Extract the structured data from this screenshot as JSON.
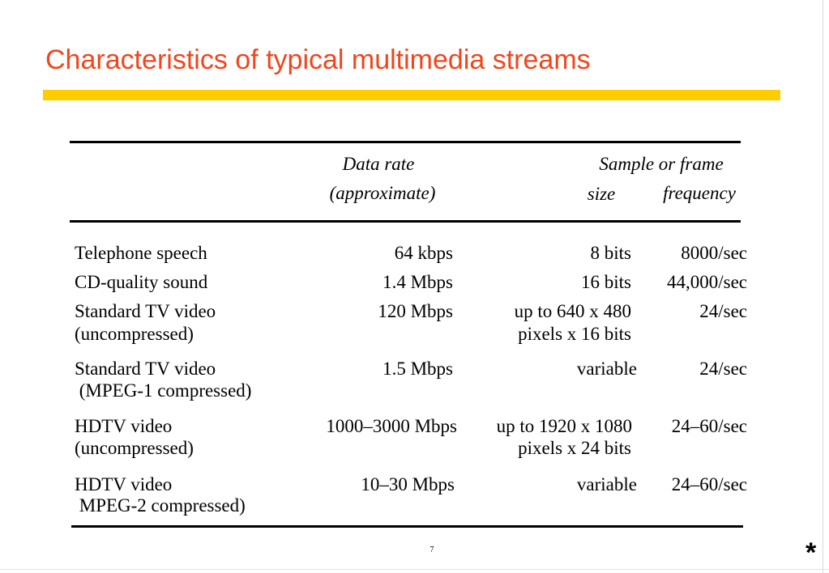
{
  "slide": {
    "title": "Characteristics of typical multimedia streams",
    "page_number": "7",
    "corner_mark": "*",
    "title_color": "#f0461e",
    "bar_color": "#ffcc00"
  },
  "table": {
    "headers": {
      "data_rate_line1": "Data rate",
      "data_rate_line2": "(approximate)",
      "sample_line1": "Sample or frame",
      "size": "size",
      "frequency": "frequency"
    },
    "rows": [
      {
        "name": [
          "Telephone speech"
        ],
        "rate": "64  kbps",
        "size": [
          "8 bits"
        ],
        "frequency": "8000/sec"
      },
      {
        "name": [
          "CD-quality sound"
        ],
        "rate": "1.4 Mbps",
        "size": [
          "16 bits"
        ],
        "frequency": "44,000/sec"
      },
      {
        "name": [
          "Standard TV video",
          "(uncompressed)"
        ],
        "rate": "120 Mbps",
        "size": [
          "up to 640 x 480",
          "pixels x 16 bits"
        ],
        "frequency": "24/sec"
      },
      {
        "name": [
          "Standard TV video",
          " (MPEG-1 compressed)"
        ],
        "rate": "1.5 Mbps",
        "size": [
          "variable"
        ],
        "frequency": "24/sec"
      },
      {
        "name": [
          "HDTV video",
          "(uncompressed)"
        ],
        "rate": "1000–3000 Mbps",
        "size": [
          "up to 1920 x 1080",
          "pixels x 24 bits"
        ],
        "frequency": "24–60/sec"
      },
      {
        "name": [
          "HDTV video",
          " MPEG-2 compressed)"
        ],
        "rate": "10–30 Mbps",
        "size": [
          "variable"
        ],
        "frequency": "24–60/sec"
      }
    ]
  }
}
